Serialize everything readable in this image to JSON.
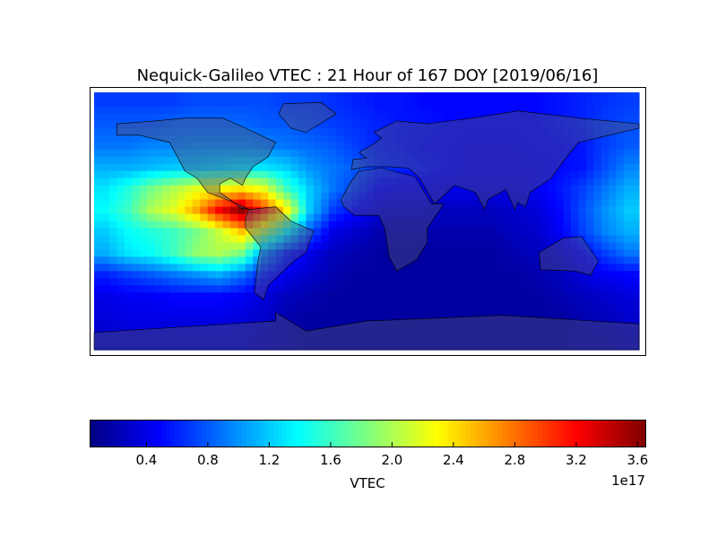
{
  "chart_data": {
    "type": "heatmap",
    "title": "Nequick-Galileo VTEC : 21 Hour of 167 DOY [2019/06/16]",
    "projection": "global map, longitude -180 to 180, latitude -90 to 90, land masses shaded with coastlines and borders",
    "grid_lon_centers": [
      -172.5,
      -157.5,
      -142.5,
      -127.5,
      -112.5,
      -97.5,
      -82.5,
      -67.5,
      -52.5,
      -37.5,
      -22.5,
      -7.5,
      7.5,
      22.5,
      37.5,
      52.5,
      67.5,
      82.5,
      97.5,
      112.5,
      127.5,
      142.5,
      157.5,
      172.5
    ],
    "grid_lat_centers": [
      82.5,
      67.5,
      52.5,
      37.5,
      22.5,
      7.5,
      -7.5,
      -22.5,
      -37.5,
      -52.5,
      -67.5,
      -82.5
    ],
    "value_unit": "1e17",
    "values": [
      [
        0.7,
        0.7,
        0.7,
        0.7,
        0.75,
        0.75,
        0.75,
        0.75,
        0.7,
        0.7,
        0.65,
        0.6,
        0.55,
        0.55,
        0.5,
        0.5,
        0.5,
        0.5,
        0.5,
        0.5,
        0.55,
        0.6,
        0.65,
        0.7
      ],
      [
        0.8,
        0.8,
        0.8,
        0.85,
        0.85,
        0.85,
        0.85,
        0.8,
        0.8,
        0.75,
        0.7,
        0.65,
        0.6,
        0.55,
        0.55,
        0.5,
        0.5,
        0.5,
        0.5,
        0.5,
        0.55,
        0.6,
        0.7,
        0.75
      ],
      [
        0.9,
        0.9,
        0.95,
        0.95,
        1.0,
        1.0,
        1.0,
        0.95,
        0.9,
        0.85,
        0.8,
        0.7,
        0.6,
        0.55,
        0.5,
        0.5,
        0.45,
        0.45,
        0.45,
        0.5,
        0.5,
        0.55,
        0.7,
        0.8
      ],
      [
        1.1,
        1.1,
        1.15,
        1.2,
        1.2,
        1.25,
        1.3,
        1.3,
        1.2,
        1.0,
        0.9,
        0.8,
        0.65,
        0.6,
        0.55,
        0.5,
        0.45,
        0.45,
        0.45,
        0.45,
        0.5,
        0.55,
        0.75,
        0.95
      ],
      [
        1.3,
        1.5,
        1.8,
        2.0,
        2.2,
        2.3,
        2.4,
        2.2,
        1.6,
        1.2,
        0.9,
        0.7,
        0.5,
        0.45,
        0.45,
        0.4,
        0.4,
        0.4,
        0.4,
        0.45,
        0.55,
        0.7,
        0.9,
        1.1
      ],
      [
        1.4,
        1.6,
        2.0,
        2.2,
        2.6,
        3.2,
        3.6,
        3.0,
        2.3,
        1.2,
        0.7,
        0.5,
        0.35,
        0.3,
        0.3,
        0.25,
        0.25,
        0.25,
        0.3,
        0.35,
        0.5,
        0.75,
        1.0,
        1.2
      ],
      [
        1.2,
        1.4,
        1.5,
        1.6,
        1.8,
        2.1,
        2.5,
        2.0,
        1.4,
        0.8,
        0.4,
        0.3,
        0.2,
        0.2,
        0.2,
        0.2,
        0.2,
        0.2,
        0.25,
        0.3,
        0.45,
        0.7,
        0.95,
        1.1
      ],
      [
        1.1,
        1.3,
        1.4,
        1.6,
        1.9,
        2.0,
        1.8,
        1.0,
        0.6,
        0.4,
        0.25,
        0.2,
        0.15,
        0.15,
        0.15,
        0.15,
        0.15,
        0.15,
        0.2,
        0.25,
        0.35,
        0.5,
        0.7,
        0.9
      ],
      [
        0.6,
        0.7,
        0.8,
        0.9,
        1.0,
        1.1,
        0.9,
        0.6,
        0.4,
        0.3,
        0.2,
        0.15,
        0.15,
        0.15,
        0.15,
        0.15,
        0.15,
        0.15,
        0.15,
        0.2,
        0.25,
        0.35,
        0.45,
        0.5
      ],
      [
        0.4,
        0.45,
        0.45,
        0.5,
        0.5,
        0.5,
        0.45,
        0.35,
        0.25,
        0.2,
        0.15,
        0.15,
        0.15,
        0.15,
        0.15,
        0.15,
        0.15,
        0.15,
        0.15,
        0.15,
        0.2,
        0.25,
        0.3,
        0.35
      ],
      [
        0.35,
        0.4,
        0.4,
        0.4,
        0.4,
        0.4,
        0.35,
        0.3,
        0.2,
        0.15,
        0.15,
        0.15,
        0.15,
        0.15,
        0.15,
        0.15,
        0.15,
        0.15,
        0.15,
        0.15,
        0.15,
        0.2,
        0.25,
        0.3
      ],
      [
        0.3,
        0.3,
        0.3,
        0.3,
        0.3,
        0.3,
        0.3,
        0.25,
        0.2,
        0.15,
        0.15,
        0.15,
        0.15,
        0.15,
        0.15,
        0.15,
        0.15,
        0.15,
        0.15,
        0.15,
        0.15,
        0.2,
        0.2,
        0.25
      ]
    ],
    "colormap": "jet",
    "colorbar": {
      "label": "VTEC",
      "multiplier": "1e17",
      "range": [
        0.03,
        3.65
      ],
      "ticks": [
        0.4,
        0.8,
        1.2,
        1.6,
        2.0,
        2.4,
        2.8,
        3.2,
        3.6
      ],
      "tick_labels": [
        "0.4",
        "0.8",
        "1.2",
        "1.6",
        "2.0",
        "2.4",
        "2.8",
        "3.2",
        "3.6"
      ],
      "orientation": "horizontal",
      "placement": "bottom"
    },
    "land_overlay_color": "#505078",
    "grid": false
  }
}
